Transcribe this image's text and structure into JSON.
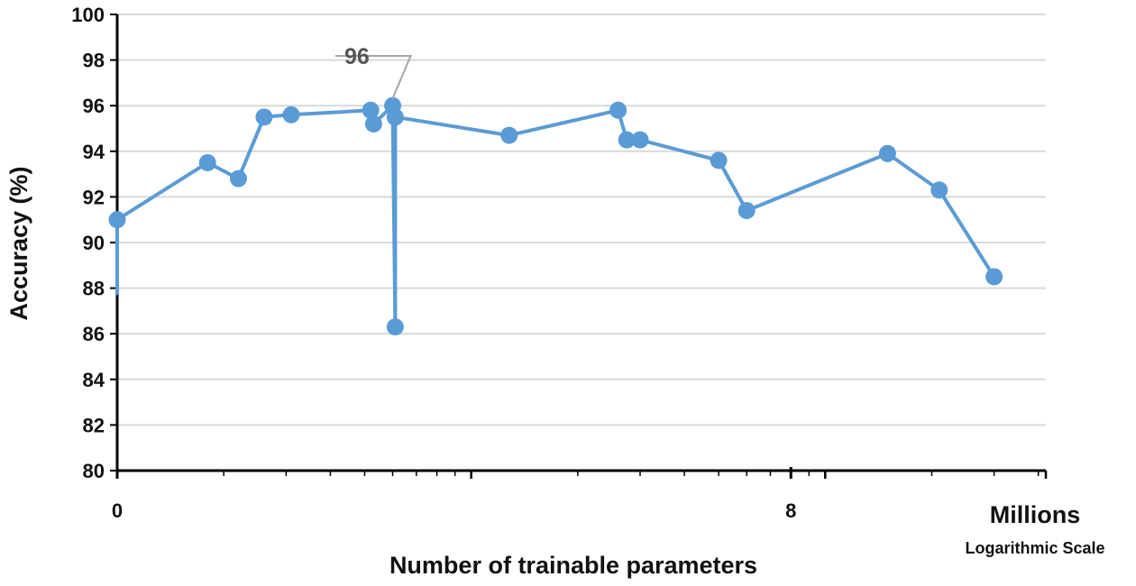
{
  "chart_data": {
    "type": "line",
    "title": "",
    "xlabel": "Number of trainable parameters",
    "x_unit_label": "Millions",
    "x_scale_label": "Logarithmic Scale",
    "ylabel": "Accuracy (%)",
    "ylim": [
      80,
      100
    ],
    "y_ticks": [
      80,
      82,
      84,
      86,
      88,
      90,
      92,
      94,
      96,
      98,
      100
    ],
    "x_tick_labels": [
      {
        "label": "0",
        "value": 0.1
      },
      {
        "label": "8",
        "value": 8
      }
    ],
    "xlim": [
      0.1,
      42
    ],
    "grid": "horizontal",
    "colors": {
      "series": "#5B9BD5",
      "grid": "#D9D9D9",
      "axis": "#000000",
      "annotation_leader": "#A6A6A6",
      "annotation_text": "#595959"
    },
    "series": [
      {
        "name": "Accuracy",
        "line_start": 87.7,
        "points": [
          {
            "x": 0.1,
            "y": 91.0
          },
          {
            "x": 0.18,
            "y": 93.5
          },
          {
            "x": 0.22,
            "y": 92.8
          },
          {
            "x": 0.26,
            "y": 95.5
          },
          {
            "x": 0.31,
            "y": 95.6
          },
          {
            "x": 0.52,
            "y": 95.8
          },
          {
            "x": 0.53,
            "y": 95.2
          },
          {
            "x": 0.6,
            "y": 96.0
          },
          {
            "x": 0.61,
            "y": 86.3
          },
          {
            "x": 0.61,
            "y": 95.5
          },
          {
            "x": 1.28,
            "y": 94.7
          },
          {
            "x": 2.6,
            "y": 95.8
          },
          {
            "x": 2.75,
            "y": 94.5
          },
          {
            "x": 3.0,
            "y": 94.5
          },
          {
            "x": 5.0,
            "y": 93.6
          },
          {
            "x": 6.0,
            "y": 91.4
          },
          {
            "x": 15.0,
            "y": 93.9
          },
          {
            "x": 21.0,
            "y": 92.3
          },
          {
            "x": 30.0,
            "y": 88.5
          }
        ]
      }
    ],
    "annotations": [
      {
        "text": "96",
        "point_index": 7
      }
    ]
  }
}
